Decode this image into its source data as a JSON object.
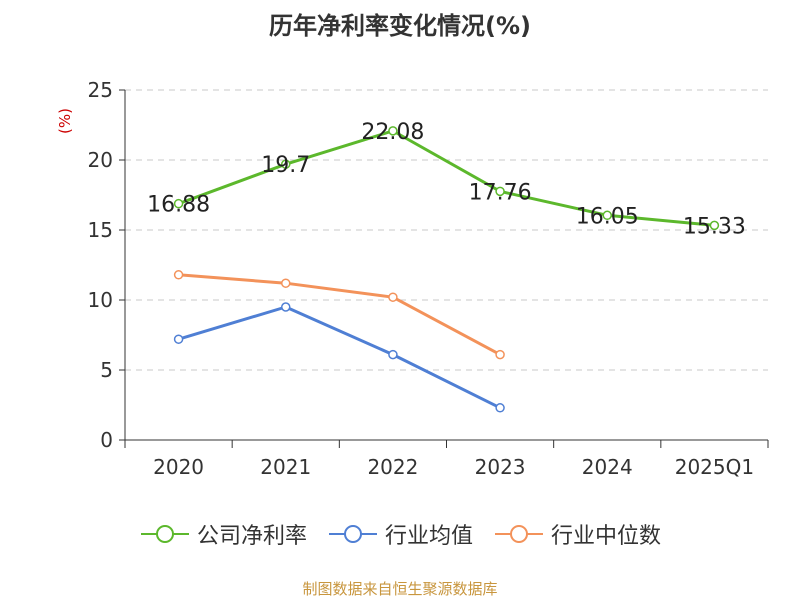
{
  "title": "历年净利率变化情况(%)",
  "unit_label": "(%)",
  "source_text": "制图数据来自恒生聚源数据库",
  "chart_data": {
    "type": "line",
    "categories": [
      "2020",
      "2021",
      "2022",
      "2023",
      "2024",
      "2025Q1"
    ],
    "yticks": [
      "0",
      "5",
      "10",
      "15",
      "20",
      "25"
    ],
    "ylim": [
      0,
      25
    ],
    "grid": true,
    "legend_position": "bottom",
    "series": [
      {
        "name": "公司净利率",
        "color": "#5cb82c",
        "values": [
          16.88,
          19.7,
          22.08,
          17.76,
          16.05,
          15.33
        ],
        "labels": [
          "16.88",
          "19.7",
          "22.08",
          "17.76",
          "16.05",
          "15.33"
        ]
      },
      {
        "name": "行业均值",
        "color": "#4f7fd4",
        "values": [
          7.2,
          9.5,
          6.1,
          2.3,
          null,
          null
        ]
      },
      {
        "name": "行业中位数",
        "color": "#f3925a",
        "values": [
          11.8,
          11.2,
          10.2,
          6.1,
          null,
          null
        ]
      }
    ]
  }
}
